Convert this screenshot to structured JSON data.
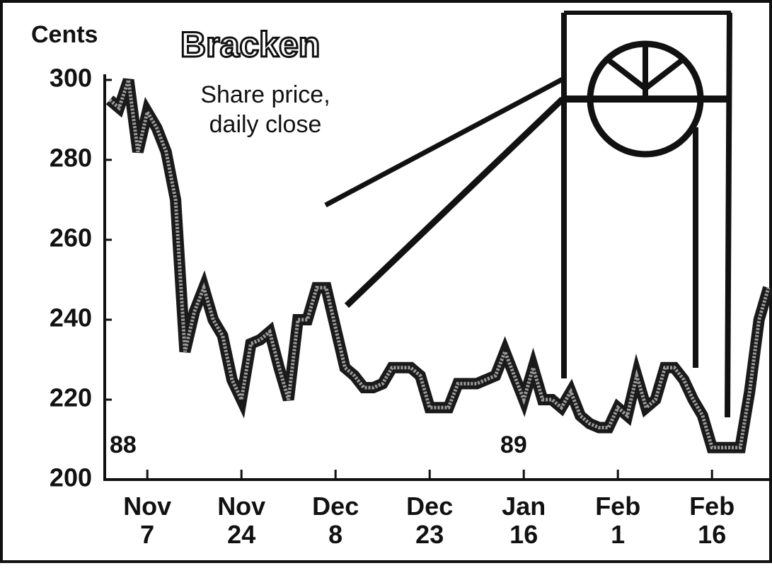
{
  "chart_data": {
    "type": "line",
    "title": "Bracken",
    "subtitle": [
      "Share price,",
      "daily close"
    ],
    "y_label": "Cents",
    "annotations": [
      "88",
      "89"
    ],
    "categories": [
      null,
      null,
      null,
      null,
      "Nov 7",
      null,
      null,
      null,
      null,
      null,
      null,
      null,
      null,
      null,
      "Nov 24",
      null,
      null,
      null,
      null,
      null,
      null,
      null,
      null,
      null,
      "Dec 8",
      null,
      null,
      null,
      null,
      null,
      null,
      null,
      null,
      null,
      "Dec 23",
      null,
      null,
      null,
      null,
      null,
      null,
      null,
      null,
      null,
      "Jan 16",
      null,
      null,
      null,
      null,
      null,
      null,
      null,
      null,
      null,
      "Feb 1",
      null,
      null,
      null,
      null,
      null,
      null,
      null,
      null,
      null,
      "Feb 16",
      null,
      null,
      null,
      null,
      null,
      null
    ],
    "series": [
      {
        "name": "Share price",
        "color": "#1a1a1a",
        "values": [
          295,
          293,
          300,
          282,
          292,
          288,
          282,
          270,
          232,
          242,
          248,
          240,
          236,
          225,
          220,
          234,
          235,
          237,
          228,
          220,
          240,
          240,
          248,
          248,
          238,
          228,
          226,
          223,
          223,
          224,
          228,
          228,
          228,
          226,
          218,
          218,
          218,
          224,
          224,
          224,
          225,
          226,
          232,
          226,
          220,
          228,
          220,
          220,
          218,
          222,
          216,
          214,
          213,
          213,
          218,
          216,
          226,
          218,
          220,
          228,
          228,
          225,
          220,
          216,
          208,
          208,
          208,
          208,
          222,
          240,
          248
        ]
      }
    ],
    "ylim": [
      200,
      300
    ],
    "yticks": [
      200,
      220,
      240,
      260,
      280,
      300
    ]
  }
}
